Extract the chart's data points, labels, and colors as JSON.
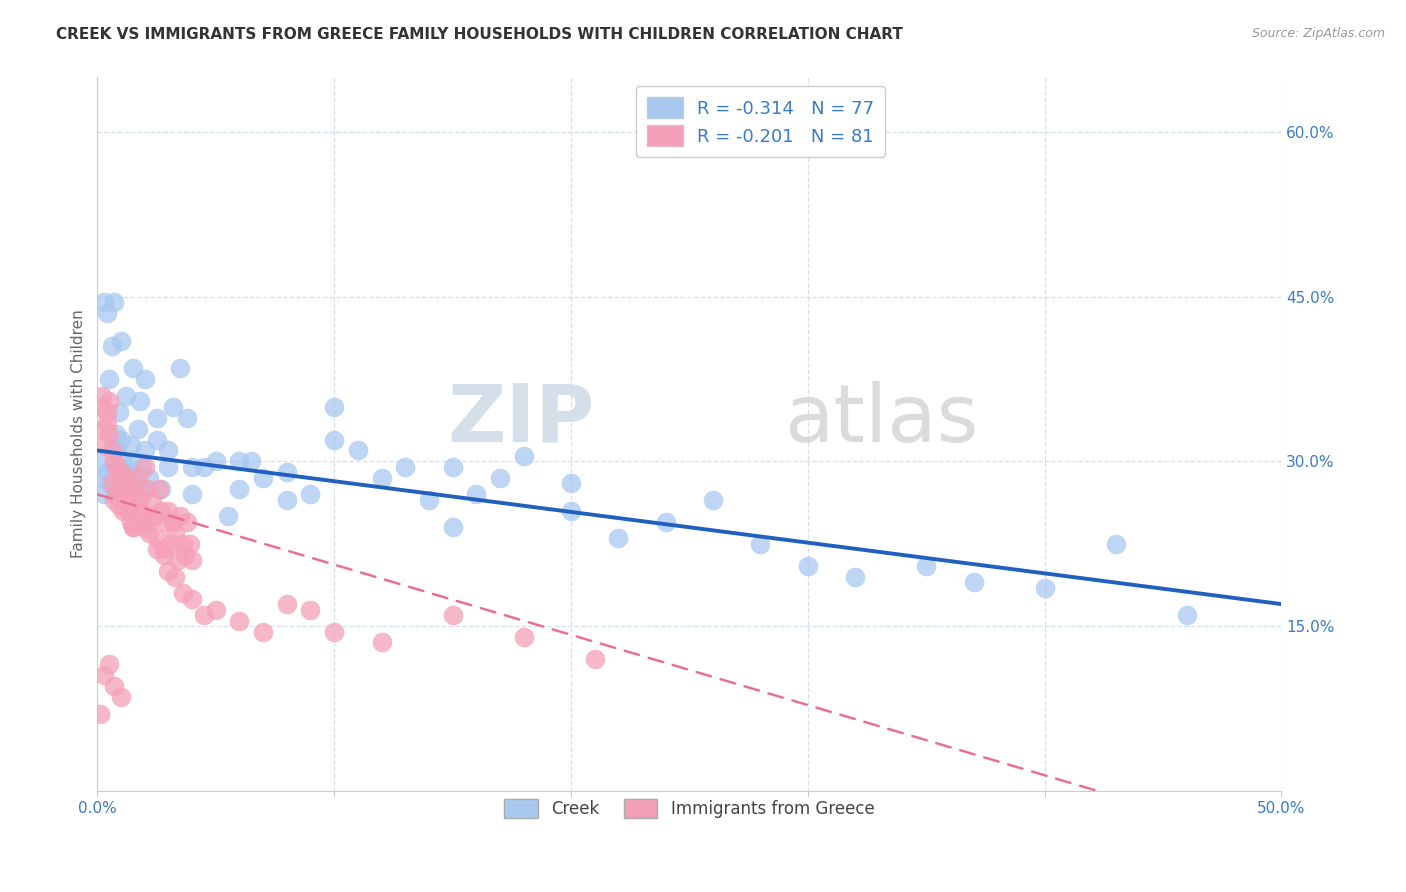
{
  "title": "CREEK VS IMMIGRANTS FROM GREECE FAMILY HOUSEHOLDS WITH CHILDREN CORRELATION CHART",
  "source": "Source: ZipAtlas.com",
  "ylabel": "Family Households with Children",
  "x_min": 0.0,
  "x_max": 0.5,
  "y_min": 0.0,
  "y_max": 0.65,
  "x_ticks": [
    0.0,
    0.1,
    0.2,
    0.3,
    0.4,
    0.5
  ],
  "x_tick_labels": [
    "0.0%",
    "",
    "",
    "",
    "",
    "50.0%"
  ],
  "y_ticks": [
    0.15,
    0.3,
    0.45,
    0.6
  ],
  "y_tick_labels": [
    "15.0%",
    "30.0%",
    "45.0%",
    "60.0%"
  ],
  "legend_label1": "Creek",
  "legend_label2": "Immigrants from Greece",
  "r1": -0.314,
  "n1": 77,
  "r2": -0.201,
  "n2": 81,
  "color_creek": "#a8c8f0",
  "color_greece": "#f4a0b8",
  "color_creek_line": "#2060c0",
  "color_greece_line": "#e87090",
  "watermark_zip": "ZIP",
  "watermark_atlas": "atlas",
  "creek_x": [
    0.001,
    0.002,
    0.003,
    0.004,
    0.005,
    0.006,
    0.007,
    0.008,
    0.009,
    0.01,
    0.011,
    0.012,
    0.013,
    0.014,
    0.015,
    0.016,
    0.017,
    0.018,
    0.019,
    0.02,
    0.022,
    0.025,
    0.027,
    0.03,
    0.032,
    0.035,
    0.038,
    0.04,
    0.045,
    0.05,
    0.055,
    0.06,
    0.065,
    0.07,
    0.08,
    0.09,
    0.1,
    0.11,
    0.12,
    0.13,
    0.14,
    0.15,
    0.16,
    0.17,
    0.18,
    0.2,
    0.22,
    0.24,
    0.26,
    0.28,
    0.3,
    0.32,
    0.35,
    0.37,
    0.4,
    0.43,
    0.46,
    0.003,
    0.004,
    0.005,
    0.006,
    0.007,
    0.008,
    0.009,
    0.01,
    0.012,
    0.015,
    0.018,
    0.02,
    0.025,
    0.03,
    0.04,
    0.06,
    0.08,
    0.1,
    0.15,
    0.2
  ],
  "creek_y": [
    0.285,
    0.3,
    0.27,
    0.29,
    0.28,
    0.295,
    0.275,
    0.31,
    0.285,
    0.32,
    0.3,
    0.29,
    0.275,
    0.315,
    0.3,
    0.285,
    0.33,
    0.275,
    0.295,
    0.31,
    0.285,
    0.32,
    0.275,
    0.295,
    0.35,
    0.385,
    0.34,
    0.27,
    0.295,
    0.3,
    0.25,
    0.275,
    0.3,
    0.285,
    0.265,
    0.27,
    0.32,
    0.31,
    0.285,
    0.295,
    0.265,
    0.24,
    0.27,
    0.285,
    0.305,
    0.255,
    0.23,
    0.245,
    0.265,
    0.225,
    0.205,
    0.195,
    0.205,
    0.19,
    0.185,
    0.225,
    0.16,
    0.445,
    0.435,
    0.375,
    0.405,
    0.445,
    0.325,
    0.345,
    0.41,
    0.36,
    0.385,
    0.355,
    0.375,
    0.34,
    0.31,
    0.295,
    0.3,
    0.29,
    0.35,
    0.295,
    0.28
  ],
  "greece_x": [
    0.001,
    0.002,
    0.003,
    0.004,
    0.005,
    0.006,
    0.007,
    0.008,
    0.009,
    0.01,
    0.011,
    0.012,
    0.013,
    0.014,
    0.015,
    0.016,
    0.017,
    0.018,
    0.019,
    0.02,
    0.021,
    0.022,
    0.023,
    0.024,
    0.025,
    0.026,
    0.027,
    0.028,
    0.029,
    0.03,
    0.031,
    0.032,
    0.033,
    0.034,
    0.035,
    0.036,
    0.037,
    0.038,
    0.039,
    0.04,
    0.002,
    0.003,
    0.004,
    0.005,
    0.006,
    0.007,
    0.008,
    0.009,
    0.01,
    0.011,
    0.012,
    0.013,
    0.014,
    0.015,
    0.016,
    0.017,
    0.018,
    0.019,
    0.02,
    0.022,
    0.025,
    0.028,
    0.03,
    0.033,
    0.036,
    0.04,
    0.045,
    0.05,
    0.06,
    0.07,
    0.08,
    0.09,
    0.1,
    0.12,
    0.15,
    0.18,
    0.21,
    0.003,
    0.005,
    0.007,
    0.01
  ],
  "greece_y": [
    0.07,
    0.36,
    0.315,
    0.335,
    0.325,
    0.28,
    0.265,
    0.27,
    0.26,
    0.29,
    0.255,
    0.27,
    0.285,
    0.26,
    0.24,
    0.275,
    0.285,
    0.265,
    0.25,
    0.295,
    0.275,
    0.245,
    0.265,
    0.25,
    0.23,
    0.275,
    0.255,
    0.22,
    0.245,
    0.255,
    0.225,
    0.245,
    0.235,
    0.21,
    0.25,
    0.225,
    0.215,
    0.245,
    0.225,
    0.21,
    0.35,
    0.33,
    0.345,
    0.355,
    0.31,
    0.3,
    0.295,
    0.285,
    0.275,
    0.27,
    0.265,
    0.255,
    0.245,
    0.24,
    0.275,
    0.265,
    0.255,
    0.245,
    0.24,
    0.235,
    0.22,
    0.215,
    0.2,
    0.195,
    0.18,
    0.175,
    0.16,
    0.165,
    0.155,
    0.145,
    0.17,
    0.165,
    0.145,
    0.135,
    0.16,
    0.14,
    0.12,
    0.105,
    0.115,
    0.095,
    0.085
  ]
}
